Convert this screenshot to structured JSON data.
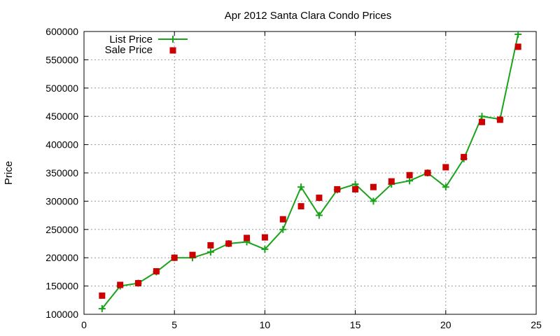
{
  "chart_data": {
    "type": "line",
    "title": "Apr 2012 Santa Clara Condo Prices",
    "xlabel": "",
    "ylabel": "Price",
    "xlim": [
      0,
      25
    ],
    "ylim": [
      100000,
      600000
    ],
    "x_ticks": [
      "0",
      "5",
      "10",
      "15",
      "20",
      "25"
    ],
    "y_ticks": [
      "100000",
      "150000",
      "200000",
      "250000",
      "300000",
      "350000",
      "400000",
      "450000",
      "500000",
      "550000",
      "600000"
    ],
    "grid": true,
    "legend_position": "top-left",
    "x": [
      1,
      2,
      3,
      4,
      5,
      6,
      7,
      8,
      9,
      10,
      11,
      12,
      13,
      14,
      15,
      16,
      17,
      18,
      19,
      20,
      21,
      22,
      23,
      24
    ],
    "series": [
      {
        "name": "List Price",
        "style": "line-with-plus-markers",
        "color": "#1aa31a",
        "values": [
          110000,
          150000,
          155000,
          175000,
          200000,
          200000,
          210000,
          225000,
          228000,
          215000,
          250000,
          325000,
          275000,
          320000,
          330000,
          300000,
          330000,
          336000,
          350000,
          325000,
          375000,
          450000,
          445000,
          595000
        ]
      },
      {
        "name": "Sale Price",
        "style": "square-markers",
        "color": "#cc0000",
        "values": [
          133000,
          152000,
          155000,
          176000,
          200000,
          205000,
          222000,
          225000,
          235000,
          236000,
          268000,
          291000,
          306000,
          321000,
          321000,
          325000,
          335000,
          346000,
          350000,
          360000,
          378000,
          440000,
          444000,
          573000
        ]
      }
    ]
  }
}
